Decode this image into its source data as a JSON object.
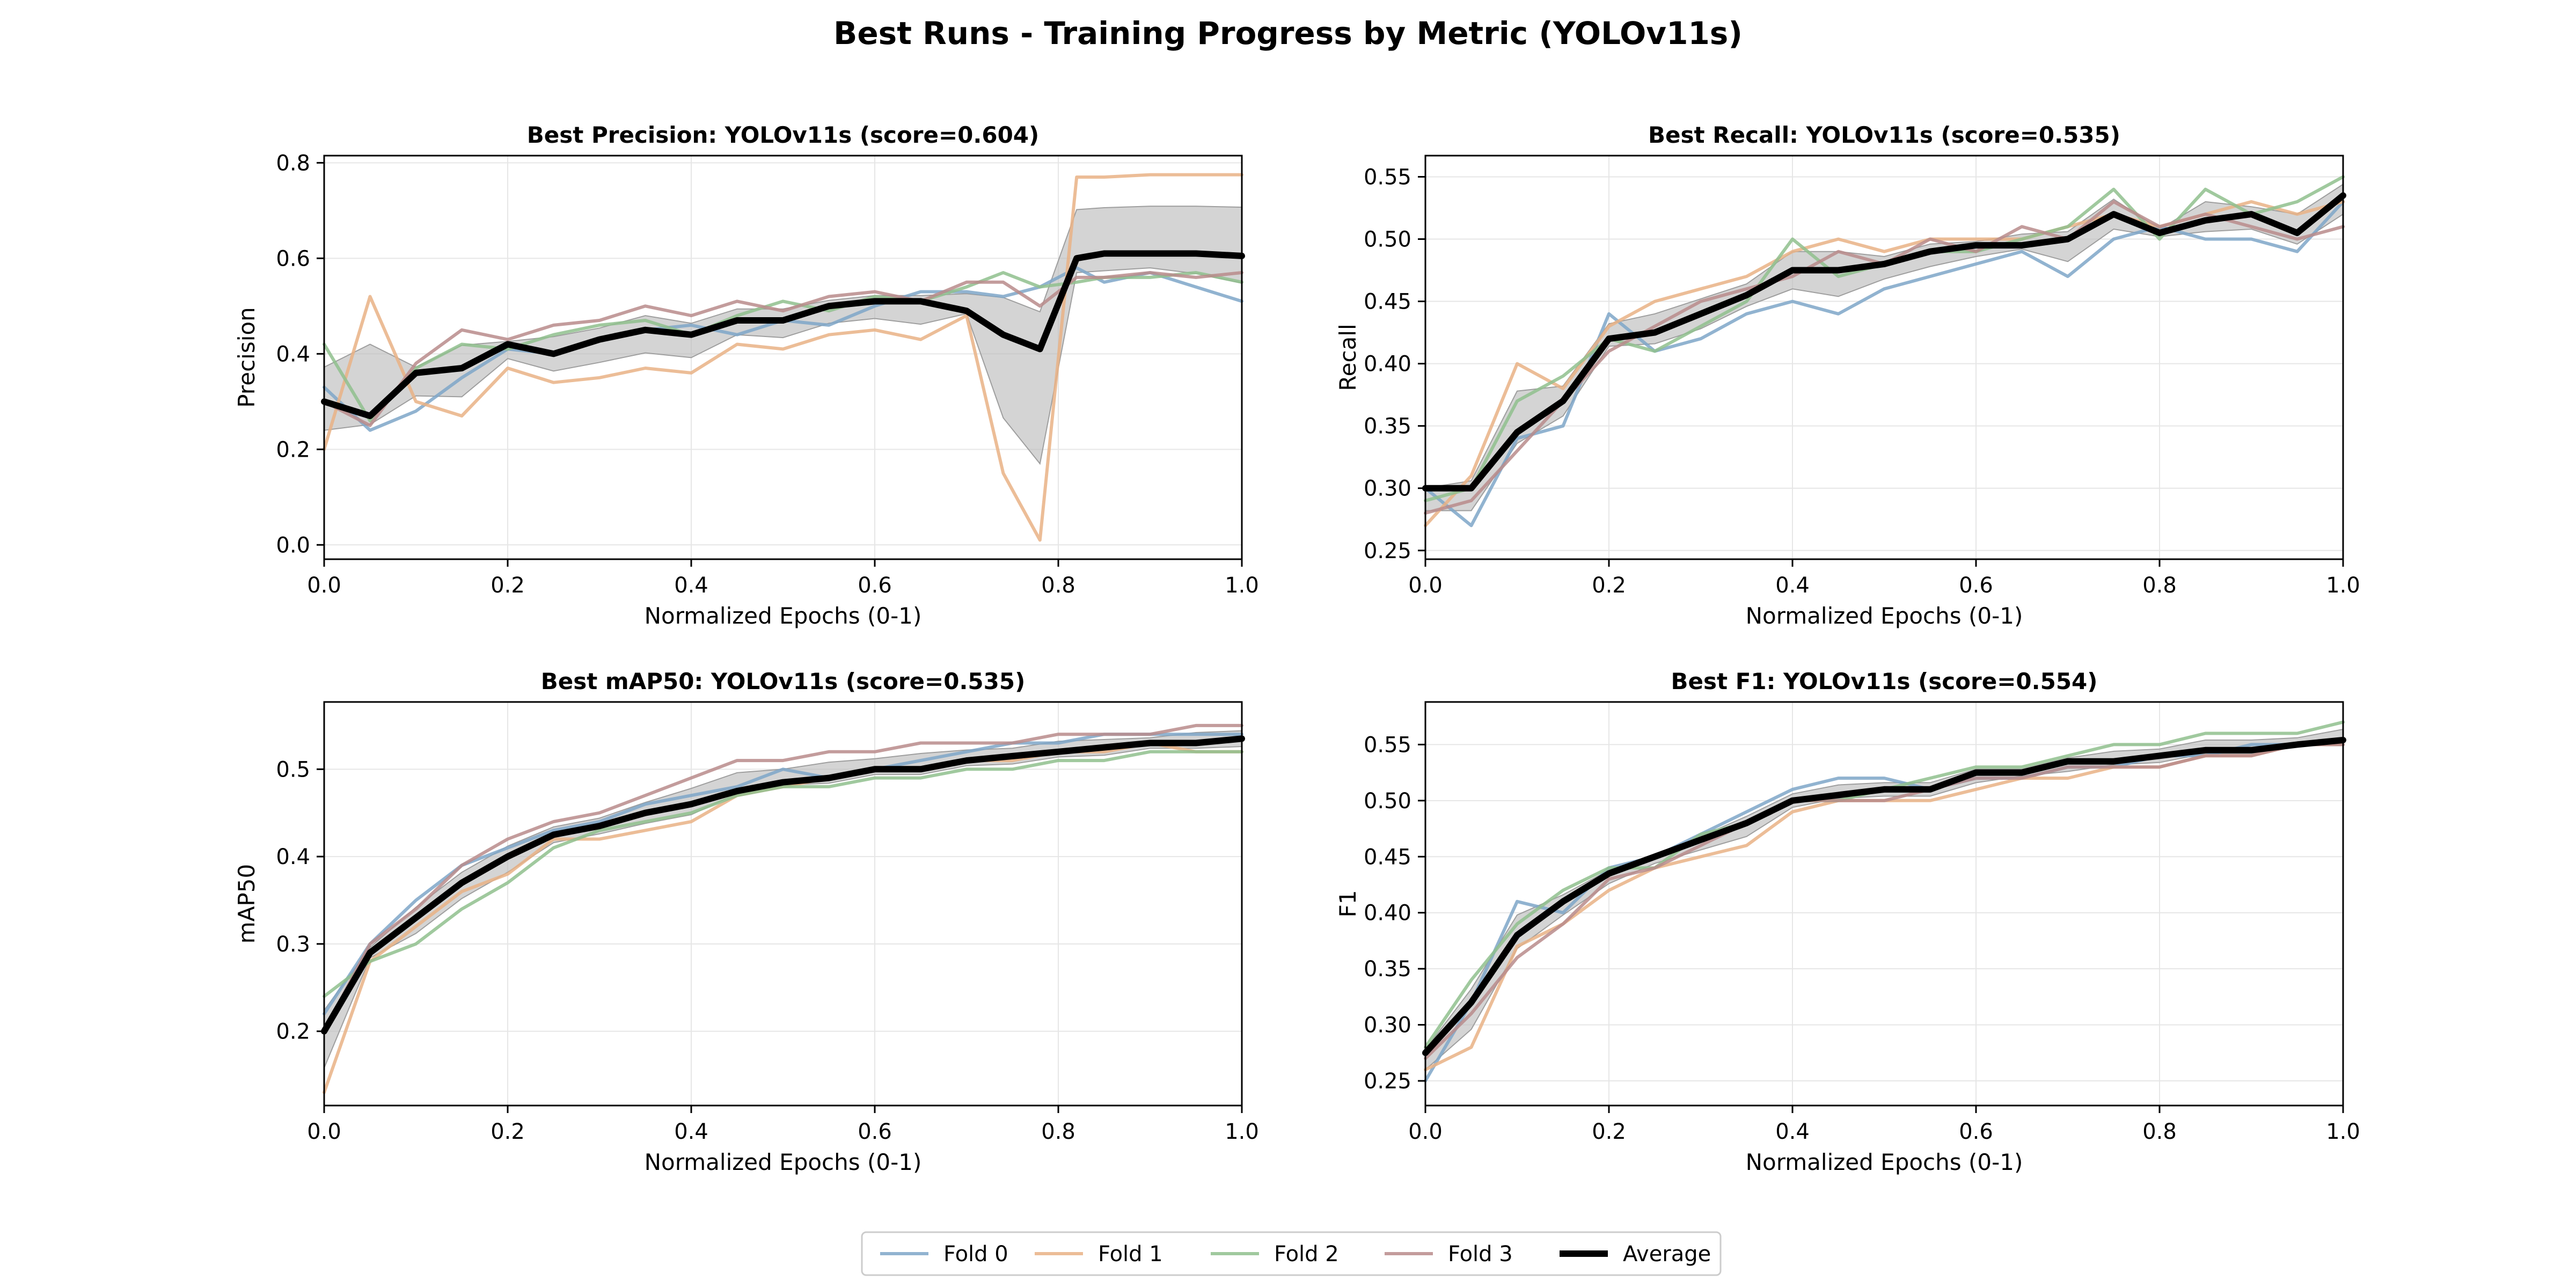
{
  "title": "Best Runs - Training Progress by Metric (YOLOv11s)",
  "colors": {
    "Fold 0": "#7ea6c8",
    "Fold 1": "#e9b285",
    "Fold 2": "#8fbf8d",
    "Fold 3": "#b88b8b",
    "Average": "#000000",
    "band": "#bdbdbd"
  },
  "legend": {
    "placement": "bottom-center",
    "entries": [
      "Fold 0",
      "Fold 1",
      "Fold 2",
      "Fold 3",
      "Average"
    ]
  },
  "chart_data": [
    {
      "type": "line",
      "title": "Best Precision: YOLOv11s (score=0.604)",
      "xlabel": "Normalized Epochs (0-1)",
      "ylabel": "Precision",
      "xlim": [
        0,
        1
      ],
      "ylim": [
        -0.03,
        0.815
      ],
      "xticks": [
        0.0,
        0.2,
        0.4,
        0.6,
        0.8,
        1.0
      ],
      "yticks": [
        0.0,
        0.2,
        0.4,
        0.6,
        0.8
      ],
      "xtick_labels": [
        "0.0",
        "0.2",
        "0.4",
        "0.6",
        "0.8",
        "1.0"
      ],
      "ytick_labels": [
        "0.0",
        "0.2",
        "0.4",
        "0.6",
        "0.8"
      ],
      "grid": true,
      "x": [
        0.0,
        0.05,
        0.1,
        0.15,
        0.2,
        0.25,
        0.3,
        0.35,
        0.4,
        0.45,
        0.5,
        0.55,
        0.6,
        0.65,
        0.7,
        0.74,
        0.78,
        0.82,
        0.85,
        0.9,
        0.95,
        1.0
      ],
      "series": [
        {
          "name": "Fold 0",
          "values": [
            0.33,
            0.24,
            0.28,
            0.35,
            0.41,
            0.4,
            0.43,
            0.45,
            0.46,
            0.44,
            0.47,
            0.46,
            0.5,
            0.53,
            0.53,
            0.52,
            0.54,
            0.58,
            0.55,
            0.57,
            0.54,
            0.51
          ]
        },
        {
          "name": "Fold 1",
          "values": [
            0.2,
            0.52,
            0.3,
            0.27,
            0.37,
            0.34,
            0.35,
            0.37,
            0.36,
            0.42,
            0.41,
            0.44,
            0.45,
            0.43,
            0.48,
            0.15,
            0.01,
            0.77,
            0.77,
            0.775,
            0.775,
            0.775
          ]
        },
        {
          "name": "Fold 2",
          "values": [
            0.42,
            0.26,
            0.37,
            0.42,
            0.41,
            0.44,
            0.46,
            0.47,
            0.44,
            0.48,
            0.51,
            0.49,
            0.52,
            0.51,
            0.54,
            0.57,
            0.54,
            0.55,
            0.56,
            0.56,
            0.57,
            0.55
          ]
        },
        {
          "name": "Fold 3",
          "values": [
            0.3,
            0.25,
            0.38,
            0.45,
            0.43,
            0.46,
            0.47,
            0.5,
            0.48,
            0.51,
            0.49,
            0.52,
            0.53,
            0.51,
            0.55,
            0.55,
            0.5,
            0.56,
            0.56,
            0.57,
            0.56,
            0.57
          ]
        },
        {
          "name": "Average",
          "values": [
            0.3,
            0.27,
            0.36,
            0.37,
            0.42,
            0.4,
            0.43,
            0.45,
            0.44,
            0.47,
            0.47,
            0.5,
            0.51,
            0.51,
            0.49,
            0.44,
            0.41,
            0.6,
            0.61,
            0.61,
            0.61,
            0.605
          ]
        }
      ]
    },
    {
      "type": "line",
      "title": "Best Recall: YOLOv11s (score=0.535)",
      "xlabel": "Normalized Epochs (0-1)",
      "ylabel": "Recall",
      "xlim": [
        0,
        1
      ],
      "ylim": [
        0.243,
        0.567
      ],
      "xticks": [
        0.0,
        0.2,
        0.4,
        0.6,
        0.8,
        1.0
      ],
      "yticks": [
        0.25,
        0.3,
        0.35,
        0.4,
        0.45,
        0.5,
        0.55
      ],
      "xtick_labels": [
        "0.0",
        "0.2",
        "0.4",
        "0.6",
        "0.8",
        "1.0"
      ],
      "ytick_labels": [
        "0.25",
        "0.30",
        "0.35",
        "0.40",
        "0.45",
        "0.50",
        "0.55"
      ],
      "grid": true,
      "x": [
        0.0,
        0.05,
        0.1,
        0.15,
        0.2,
        0.25,
        0.3,
        0.35,
        0.4,
        0.45,
        0.5,
        0.55,
        0.6,
        0.65,
        0.7,
        0.75,
        0.8,
        0.85,
        0.9,
        0.95,
        1.0
      ],
      "series": [
        {
          "name": "Fold 0",
          "values": [
            0.3,
            0.27,
            0.34,
            0.35,
            0.44,
            0.41,
            0.42,
            0.44,
            0.45,
            0.44,
            0.46,
            0.47,
            0.48,
            0.49,
            0.47,
            0.5,
            0.51,
            0.5,
            0.5,
            0.49,
            0.53
          ]
        },
        {
          "name": "Fold 1",
          "values": [
            0.27,
            0.31,
            0.4,
            0.38,
            0.43,
            0.45,
            0.46,
            0.47,
            0.49,
            0.5,
            0.49,
            0.5,
            0.5,
            0.5,
            0.51,
            0.52,
            0.51,
            0.52,
            0.53,
            0.52,
            0.53
          ]
        },
        {
          "name": "Fold 2",
          "values": [
            0.29,
            0.3,
            0.37,
            0.39,
            0.42,
            0.41,
            0.43,
            0.45,
            0.5,
            0.47,
            0.48,
            0.49,
            0.49,
            0.5,
            0.51,
            0.54,
            0.5,
            0.54,
            0.52,
            0.53,
            0.55
          ]
        },
        {
          "name": "Fold 3",
          "values": [
            0.28,
            0.29,
            0.33,
            0.37,
            0.41,
            0.43,
            0.45,
            0.46,
            0.47,
            0.49,
            0.48,
            0.5,
            0.49,
            0.51,
            0.5,
            0.53,
            0.51,
            0.52,
            0.51,
            0.5,
            0.51
          ]
        },
        {
          "name": "Average",
          "values": [
            0.3,
            0.3,
            0.345,
            0.37,
            0.42,
            0.425,
            0.44,
            0.455,
            0.475,
            0.475,
            0.48,
            0.49,
            0.495,
            0.495,
            0.5,
            0.52,
            0.505,
            0.515,
            0.52,
            0.505,
            0.535
          ]
        }
      ]
    },
    {
      "type": "line",
      "title": "Best mAP50: YOLOv11s (score=0.535)",
      "xlabel": "Normalized Epochs (0-1)",
      "ylabel": "mAP50",
      "xlim": [
        0,
        1
      ],
      "ylim": [
        0.115,
        0.577
      ],
      "xticks": [
        0.0,
        0.2,
        0.4,
        0.6,
        0.8,
        1.0
      ],
      "yticks": [
        0.2,
        0.3,
        0.4,
        0.5
      ],
      "xtick_labels": [
        "0.0",
        "0.2",
        "0.4",
        "0.6",
        "0.8",
        "1.0"
      ],
      "ytick_labels": [
        "0.2",
        "0.3",
        "0.4",
        "0.5"
      ],
      "grid": true,
      "x": [
        0.0,
        0.05,
        0.1,
        0.15,
        0.2,
        0.25,
        0.3,
        0.35,
        0.4,
        0.45,
        0.5,
        0.55,
        0.6,
        0.65,
        0.7,
        0.75,
        0.8,
        0.85,
        0.9,
        0.95,
        1.0
      ],
      "series": [
        {
          "name": "Fold 0",
          "values": [
            0.22,
            0.3,
            0.35,
            0.39,
            0.41,
            0.43,
            0.44,
            0.46,
            0.47,
            0.48,
            0.5,
            0.49,
            0.5,
            0.51,
            0.52,
            0.53,
            0.53,
            0.54,
            0.54,
            0.54,
            0.54
          ]
        },
        {
          "name": "Fold 1",
          "values": [
            0.13,
            0.28,
            0.32,
            0.36,
            0.38,
            0.42,
            0.42,
            0.43,
            0.44,
            0.47,
            0.48,
            0.49,
            0.5,
            0.5,
            0.51,
            0.51,
            0.52,
            0.52,
            0.53,
            0.52,
            0.52
          ]
        },
        {
          "name": "Fold 2",
          "values": [
            0.24,
            0.28,
            0.3,
            0.34,
            0.37,
            0.41,
            0.43,
            0.44,
            0.45,
            0.47,
            0.48,
            0.48,
            0.49,
            0.49,
            0.5,
            0.5,
            0.51,
            0.51,
            0.52,
            0.52,
            0.52
          ]
        },
        {
          "name": "Fold 3",
          "values": [
            0.2,
            0.3,
            0.34,
            0.39,
            0.42,
            0.44,
            0.45,
            0.47,
            0.49,
            0.51,
            0.51,
            0.52,
            0.52,
            0.53,
            0.53,
            0.53,
            0.54,
            0.54,
            0.54,
            0.55,
            0.55
          ]
        },
        {
          "name": "Average",
          "values": [
            0.2,
            0.29,
            0.33,
            0.37,
            0.4,
            0.425,
            0.435,
            0.45,
            0.46,
            0.475,
            0.485,
            0.49,
            0.5,
            0.5,
            0.51,
            0.515,
            0.52,
            0.525,
            0.53,
            0.53,
            0.535
          ]
        }
      ]
    },
    {
      "type": "line",
      "title": "Best F1: YOLOv11s (score=0.554)",
      "xlabel": "Normalized Epochs (0-1)",
      "ylabel": "F1",
      "xlim": [
        0,
        1
      ],
      "ylim": [
        0.228,
        0.588
      ],
      "xticks": [
        0.0,
        0.2,
        0.4,
        0.6,
        0.8,
        1.0
      ],
      "yticks": [
        0.25,
        0.3,
        0.35,
        0.4,
        0.45,
        0.5,
        0.55
      ],
      "xtick_labels": [
        "0.0",
        "0.2",
        "0.4",
        "0.6",
        "0.8",
        "1.0"
      ],
      "ytick_labels": [
        "0.25",
        "0.30",
        "0.35",
        "0.40",
        "0.45",
        "0.50",
        "0.55"
      ],
      "grid": true,
      "x": [
        0.0,
        0.05,
        0.1,
        0.15,
        0.2,
        0.25,
        0.3,
        0.35,
        0.4,
        0.45,
        0.5,
        0.55,
        0.6,
        0.65,
        0.7,
        0.75,
        0.8,
        0.85,
        0.9,
        0.95,
        1.0
      ],
      "series": [
        {
          "name": "Fold 0",
          "values": [
            0.25,
            0.32,
            0.41,
            0.4,
            0.44,
            0.45,
            0.47,
            0.49,
            0.51,
            0.52,
            0.52,
            0.51,
            0.52,
            0.52,
            0.53,
            0.53,
            0.54,
            0.54,
            0.55,
            0.55,
            0.55
          ]
        },
        {
          "name": "Fold 1",
          "values": [
            0.26,
            0.28,
            0.37,
            0.39,
            0.42,
            0.44,
            0.45,
            0.46,
            0.49,
            0.5,
            0.5,
            0.5,
            0.51,
            0.52,
            0.52,
            0.53,
            0.53,
            0.54,
            0.54,
            0.55,
            0.55
          ]
        },
        {
          "name": "Fold 2",
          "values": [
            0.28,
            0.34,
            0.39,
            0.42,
            0.44,
            0.44,
            0.47,
            0.48,
            0.5,
            0.5,
            0.51,
            0.52,
            0.53,
            0.53,
            0.54,
            0.55,
            0.55,
            0.56,
            0.56,
            0.56,
            0.57
          ]
        },
        {
          "name": "Fold 3",
          "values": [
            0.27,
            0.31,
            0.36,
            0.39,
            0.43,
            0.44,
            0.46,
            0.48,
            0.5,
            0.5,
            0.5,
            0.51,
            0.52,
            0.52,
            0.53,
            0.53,
            0.53,
            0.54,
            0.54,
            0.55,
            0.55
          ]
        },
        {
          "name": "Average",
          "values": [
            0.275,
            0.32,
            0.38,
            0.41,
            0.435,
            0.45,
            0.465,
            0.48,
            0.5,
            0.505,
            0.51,
            0.51,
            0.525,
            0.525,
            0.535,
            0.535,
            0.54,
            0.545,
            0.545,
            0.55,
            0.554
          ]
        }
      ]
    }
  ]
}
